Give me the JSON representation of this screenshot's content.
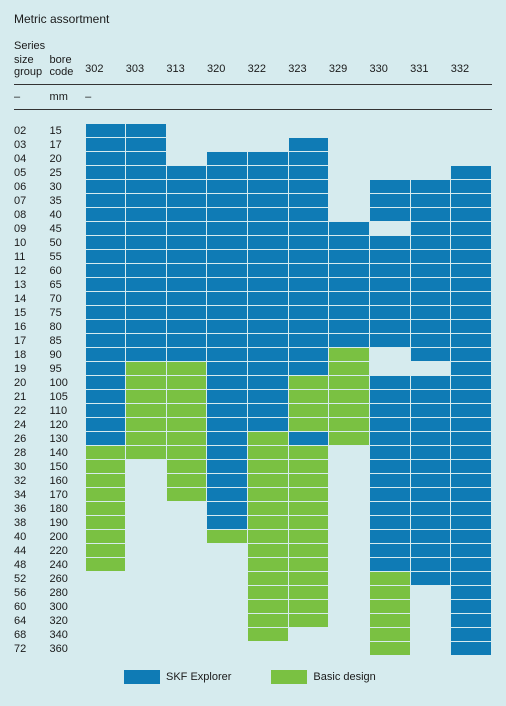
{
  "title": "Metric assortment",
  "colors": {
    "background": "#d6ebee",
    "empty": "#d6ebee",
    "explorer": "#0f7bb5",
    "basic": "#7ac142",
    "cell_border": "#d6ebee",
    "rule": "#333333",
    "text": "#1a1a1a"
  },
  "legend": {
    "explorer": "SKF Explorer",
    "basic": "Basic design"
  },
  "headers": {
    "series_label": "Series",
    "size_group": "size\ngroup",
    "bore_code": "bore\ncode",
    "unit_dash": "–",
    "unit_mm": "mm"
  },
  "cols": {
    "size_width": 35,
    "bore_width": 35,
    "series_width": 40
  },
  "series": [
    "302",
    "303",
    "313",
    "320",
    "322",
    "323",
    "329",
    "330",
    "331",
    "332"
  ],
  "rows": [
    {
      "size": "02",
      "bore": "15",
      "c": [
        "E",
        "E",
        "",
        "",
        "",
        "",
        "",
        "",
        "",
        ""
      ]
    },
    {
      "size": "03",
      "bore": "17",
      "c": [
        "E",
        "E",
        "",
        "",
        "",
        "E",
        "",
        "",
        "",
        ""
      ]
    },
    {
      "size": "04",
      "bore": "20",
      "c": [
        "E",
        "E",
        "",
        "E",
        "E",
        "E",
        "",
        "",
        "",
        ""
      ]
    },
    {
      "size": "05",
      "bore": "25",
      "c": [
        "E",
        "E",
        "E",
        "E",
        "E",
        "E",
        "",
        "",
        "",
        "E"
      ]
    },
    {
      "size": "06",
      "bore": "30",
      "c": [
        "E",
        "E",
        "E",
        "E",
        "E",
        "E",
        "",
        "E",
        "E",
        "E"
      ]
    },
    {
      "size": "07",
      "bore": "35",
      "c": [
        "E",
        "E",
        "E",
        "E",
        "E",
        "E",
        "",
        "E",
        "E",
        "E"
      ]
    },
    {
      "size": "08",
      "bore": "40",
      "c": [
        "E",
        "E",
        "E",
        "E",
        "E",
        "E",
        "",
        "E",
        "E",
        "E"
      ]
    },
    {
      "size": "09",
      "bore": "45",
      "c": [
        "E",
        "E",
        "E",
        "E",
        "E",
        "E",
        "E",
        "",
        "E",
        "E"
      ]
    },
    {
      "size": "10",
      "bore": "50",
      "c": [
        "E",
        "E",
        "E",
        "E",
        "E",
        "E",
        "E",
        "E",
        "E",
        "E"
      ]
    },
    {
      "size": "11",
      "bore": "55",
      "c": [
        "E",
        "E",
        "E",
        "E",
        "E",
        "E",
        "E",
        "E",
        "E",
        "E"
      ]
    },
    {
      "size": "12",
      "bore": "60",
      "c": [
        "E",
        "E",
        "E",
        "E",
        "E",
        "E",
        "E",
        "E",
        "E",
        "E"
      ]
    },
    {
      "size": "13",
      "bore": "65",
      "c": [
        "E",
        "E",
        "E",
        "E",
        "E",
        "E",
        "E",
        "E",
        "E",
        "E"
      ]
    },
    {
      "size": "14",
      "bore": "70",
      "c": [
        "E",
        "E",
        "E",
        "E",
        "E",
        "E",
        "E",
        "E",
        "E",
        "E"
      ]
    },
    {
      "size": "15",
      "bore": "75",
      "c": [
        "E",
        "E",
        "E",
        "E",
        "E",
        "E",
        "E",
        "E",
        "E",
        "E"
      ]
    },
    {
      "size": "16",
      "bore": "80",
      "c": [
        "E",
        "E",
        "E",
        "E",
        "E",
        "E",
        "E",
        "E",
        "E",
        "E"
      ]
    },
    {
      "size": "17",
      "bore": "85",
      "c": [
        "E",
        "E",
        "E",
        "E",
        "E",
        "E",
        "E",
        "E",
        "E",
        "E"
      ]
    },
    {
      "size": "18",
      "bore": "90",
      "c": [
        "E",
        "E",
        "E",
        "E",
        "E",
        "E",
        "B",
        "",
        "E",
        "E"
      ]
    },
    {
      "size": "19",
      "bore": "95",
      "c": [
        "E",
        "B",
        "B",
        "E",
        "E",
        "E",
        "B",
        "",
        "",
        "E"
      ]
    },
    {
      "size": "20",
      "bore": "100",
      "c": [
        "E",
        "B",
        "B",
        "E",
        "E",
        "B",
        "B",
        "E",
        "E",
        "E"
      ]
    },
    {
      "size": "21",
      "bore": "105",
      "c": [
        "E",
        "B",
        "B",
        "E",
        "E",
        "B",
        "B",
        "E",
        "E",
        "E"
      ]
    },
    {
      "size": "22",
      "bore": "110",
      "c": [
        "E",
        "B",
        "B",
        "E",
        "E",
        "B",
        "B",
        "E",
        "E",
        "E"
      ]
    },
    {
      "size": "24",
      "bore": "120",
      "c": [
        "E",
        "B",
        "B",
        "E",
        "E",
        "B",
        "B",
        "E",
        "E",
        "E"
      ]
    },
    {
      "size": "26",
      "bore": "130",
      "c": [
        "E",
        "B",
        "B",
        "E",
        "B",
        "E",
        "B",
        "E",
        "E",
        "E"
      ]
    },
    {
      "size": "28",
      "bore": "140",
      "c": [
        "B",
        "B",
        "B",
        "E",
        "B",
        "B",
        "",
        "E",
        "E",
        "E"
      ]
    },
    {
      "size": "30",
      "bore": "150",
      "c": [
        "B",
        "",
        "B",
        "E",
        "B",
        "B",
        "",
        "E",
        "E",
        "E"
      ]
    },
    {
      "size": "32",
      "bore": "160",
      "c": [
        "B",
        "",
        "B",
        "E",
        "B",
        "B",
        "",
        "E",
        "E",
        "E"
      ]
    },
    {
      "size": "34",
      "bore": "170",
      "c": [
        "B",
        "",
        "B",
        "E",
        "B",
        "B",
        "",
        "E",
        "E",
        "E"
      ]
    },
    {
      "size": "36",
      "bore": "180",
      "c": [
        "B",
        "",
        "",
        "E",
        "B",
        "B",
        "",
        "E",
        "E",
        "E"
      ]
    },
    {
      "size": "38",
      "bore": "190",
      "c": [
        "B",
        "",
        "",
        "E",
        "B",
        "B",
        "",
        "E",
        "E",
        "E"
      ]
    },
    {
      "size": "40",
      "bore": "200",
      "c": [
        "B",
        "",
        "",
        "B",
        "B",
        "B",
        "",
        "E",
        "E",
        "E"
      ]
    },
    {
      "size": "44",
      "bore": "220",
      "c": [
        "B",
        "",
        "",
        "",
        "B",
        "B",
        "",
        "E",
        "E",
        "E"
      ]
    },
    {
      "size": "48",
      "bore": "240",
      "c": [
        "B",
        "",
        "",
        "",
        "B",
        "B",
        "",
        "E",
        "E",
        "E"
      ]
    },
    {
      "size": "52",
      "bore": "260",
      "c": [
        "",
        "",
        "",
        "",
        "B",
        "B",
        "",
        "B",
        "E",
        "E"
      ]
    },
    {
      "size": "56",
      "bore": "280",
      "c": [
        "",
        "",
        "",
        "",
        "B",
        "B",
        "",
        "B",
        "",
        "E"
      ]
    },
    {
      "size": "60",
      "bore": "300",
      "c": [
        "",
        "",
        "",
        "",
        "B",
        "B",
        "",
        "B",
        "",
        "E"
      ]
    },
    {
      "size": "64",
      "bore": "320",
      "c": [
        "",
        "",
        "",
        "",
        "B",
        "B",
        "",
        "B",
        "",
        "E"
      ]
    },
    {
      "size": "68",
      "bore": "340",
      "c": [
        "",
        "",
        "",
        "",
        "B",
        "",
        "",
        "B",
        "",
        "E"
      ]
    },
    {
      "size": "72",
      "bore": "360",
      "c": [
        "",
        "",
        "",
        "",
        "",
        "",
        "",
        "B",
        "",
        "E"
      ]
    }
  ]
}
